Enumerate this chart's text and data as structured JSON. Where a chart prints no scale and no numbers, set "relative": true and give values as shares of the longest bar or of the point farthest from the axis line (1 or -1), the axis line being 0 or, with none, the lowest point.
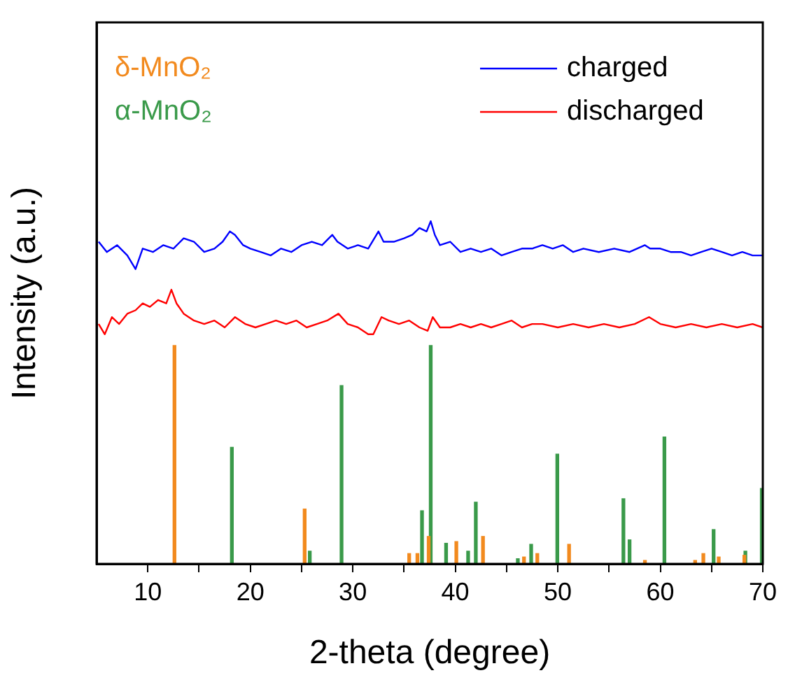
{
  "chart_data": {
    "type": "line",
    "relative": true,
    "xlabel": "2-theta (degree)",
    "ylabel": "Intensity (a.u.)",
    "xlim": [
      5,
      70
    ],
    "xticks": [
      10,
      {
        "value": 15,
        "label": null
      },
      20,
      {
        "value": 25,
        "label": null
      },
      30,
      {
        "value": 35,
        "label": null
      },
      40,
      {
        "value": 45,
        "label": null
      },
      50,
      {
        "value": 55,
        "label": null
      },
      60,
      {
        "value": 65,
        "label": null
      },
      70
    ],
    "grid": false,
    "legend": "top right",
    "marker": "none",
    "line_style": "solid",
    "series": [
      {
        "name": "charged",
        "color": "#0000ff",
        "x": [
          5.2,
          6,
          7,
          8,
          8.8,
          9.5,
          10.5,
          11.5,
          12.5,
          13.5,
          14.5,
          15.5,
          16.5,
          17.3,
          18,
          18.5,
          19.3,
          20,
          21,
          22,
          23,
          24,
          25,
          26,
          27,
          28,
          28.5,
          29.5,
          30.5,
          31.5,
          32.5,
          33,
          34,
          35,
          35.8,
          36.5,
          37.2,
          37.6,
          38,
          38.5,
          39.5,
          40.5,
          41.5,
          42.5,
          43.5,
          44.5,
          45.5,
          46.5,
          47.5,
          48.5,
          49.5,
          50.5,
          51.5,
          52.5,
          54,
          55.5,
          57,
          58.5,
          59,
          60,
          61,
          62,
          63,
          64,
          65,
          66,
          67,
          68,
          69,
          70
        ],
        "values": [
          0.94,
          0.91,
          0.93,
          0.9,
          0.86,
          0.92,
          0.91,
          0.93,
          0.92,
          0.95,
          0.94,
          0.91,
          0.92,
          0.94,
          0.97,
          0.96,
          0.93,
          0.92,
          0.91,
          0.9,
          0.92,
          0.91,
          0.93,
          0.94,
          0.93,
          0.96,
          0.94,
          0.92,
          0.93,
          0.92,
          0.97,
          0.94,
          0.94,
          0.95,
          0.96,
          0.98,
          0.97,
          1,
          0.96,
          0.93,
          0.94,
          0.91,
          0.92,
          0.91,
          0.92,
          0.9,
          0.91,
          0.92,
          0.92,
          0.93,
          0.92,
          0.93,
          0.91,
          0.92,
          0.91,
          0.92,
          0.91,
          0.93,
          0.92,
          0.92,
          0.91,
          0.91,
          0.9,
          0.91,
          0.92,
          0.91,
          0.9,
          0.91,
          0.9,
          0.9
        ]
      },
      {
        "name": "discharged",
        "color": "#ff0000",
        "x": [
          5.2,
          5.8,
          6.5,
          7.2,
          8,
          8.8,
          9.5,
          10.2,
          11,
          11.8,
          12.3,
          12.8,
          13.5,
          14.5,
          15.5,
          16.5,
          17.5,
          18.5,
          19.5,
          20.5,
          21.5,
          22.5,
          23.5,
          24.5,
          25.5,
          26.5,
          27.5,
          28.6,
          29.5,
          30.5,
          31.5,
          32,
          32.8,
          33.5,
          34.5,
          35.5,
          36.5,
          37.3,
          37.8,
          38.5,
          39.5,
          40.5,
          41.5,
          42.5,
          43.5,
          44.5,
          45.5,
          46.5,
          47.5,
          48.5,
          50,
          51.5,
          53,
          54.5,
          56,
          57.5,
          58.9,
          60,
          61.5,
          63,
          64.5,
          66,
          67.5,
          69,
          70
        ],
        "values": [
          0.7,
          0.67,
          0.72,
          0.7,
          0.73,
          0.74,
          0.76,
          0.75,
          0.77,
          0.76,
          0.8,
          0.76,
          0.73,
          0.71,
          0.7,
          0.71,
          0.69,
          0.72,
          0.7,
          0.69,
          0.7,
          0.71,
          0.7,
          0.71,
          0.69,
          0.7,
          0.71,
          0.73,
          0.7,
          0.69,
          0.67,
          0.67,
          0.72,
          0.71,
          0.7,
          0.71,
          0.69,
          0.68,
          0.72,
          0.69,
          0.69,
          0.7,
          0.69,
          0.7,
          0.69,
          0.7,
          0.71,
          0.69,
          0.7,
          0.7,
          0.69,
          0.7,
          0.69,
          0.7,
          0.69,
          0.7,
          0.72,
          0.7,
          0.69,
          0.7,
          0.69,
          0.7,
          0.69,
          0.7,
          0.69
        ]
      },
      {
        "name": "δ-MnO₂",
        "type": "bar",
        "color": "#f28a1e",
        "x": [
          12.6,
          25.3,
          35.5,
          36.3,
          37.4,
          40.1,
          42.7,
          46.7,
          48,
          51.1,
          58.5,
          63.4,
          64.2,
          65.7,
          68.2
        ],
        "values": [
          0.637,
          0.16,
          0.03,
          0.03,
          0.08,
          0.065,
          0.08,
          0.02,
          0.03,
          0.057,
          0.01,
          0.01,
          0.03,
          0.02,
          0.025
        ]
      },
      {
        "name": "α-MnO₂",
        "type": "bar",
        "color": "#3a9a4a",
        "x": [
          18.2,
          25.8,
          28.9,
          36.75,
          37.6,
          39.1,
          41.25,
          42,
          46.1,
          47.4,
          49.95,
          56.4,
          57,
          60.4,
          65.2,
          68.3,
          69.9
        ],
        "values": [
          0.34,
          0.037,
          0.52,
          0.155,
          0.637,
          0.06,
          0.037,
          0.18,
          0.015,
          0.057,
          0.32,
          0.19,
          0.07,
          0.37,
          0.1,
          0.037,
          0.22
        ]
      }
    ]
  }
}
